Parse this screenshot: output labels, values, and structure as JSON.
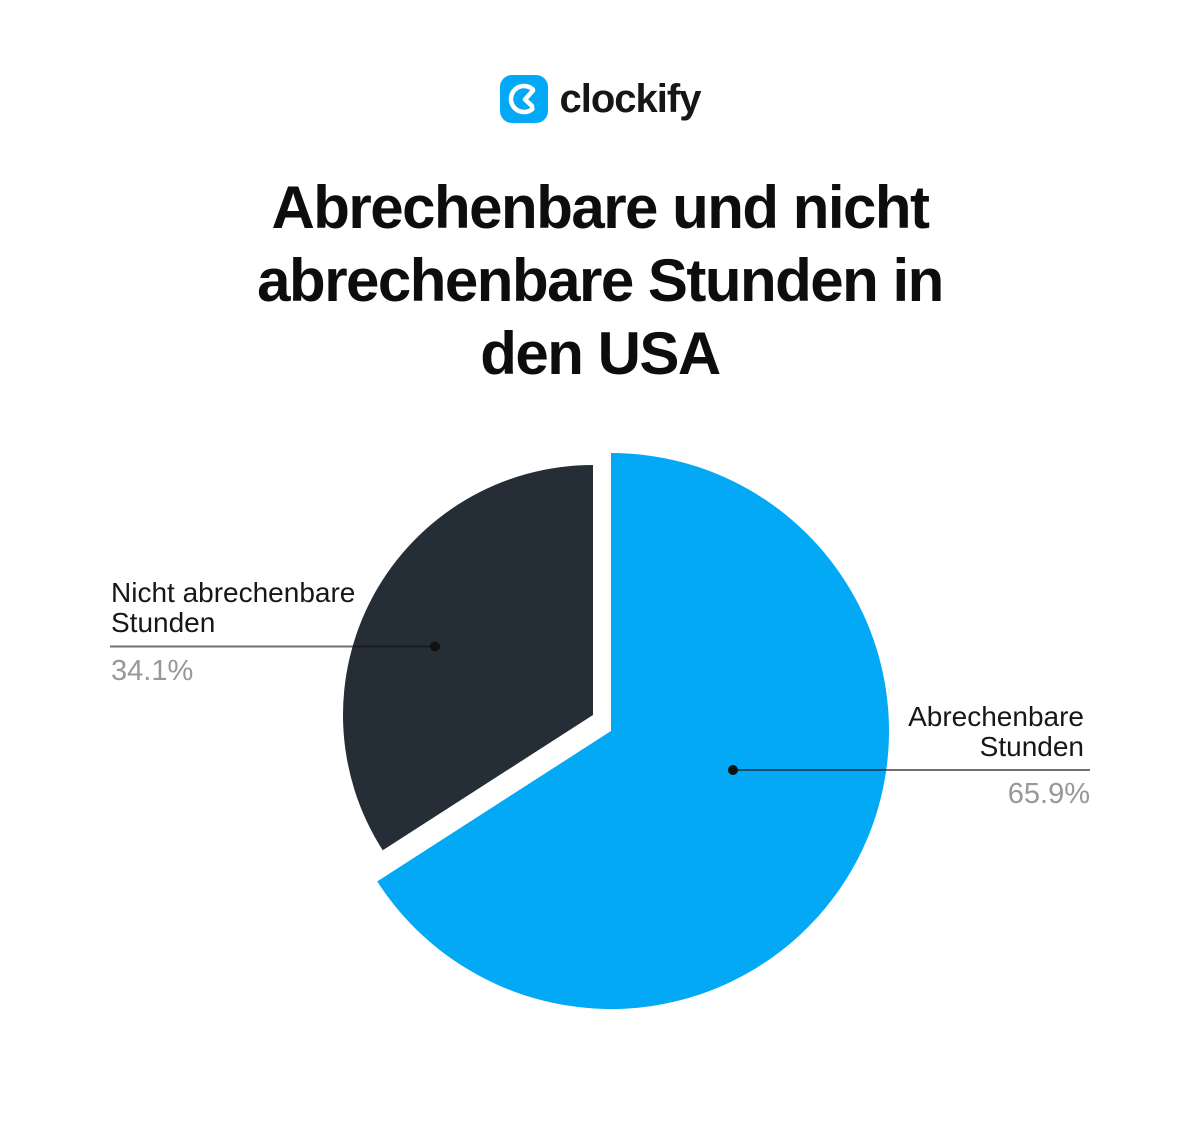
{
  "page": {
    "background": "#ffffff"
  },
  "header": {
    "brand": {
      "name": "clockify",
      "icon": "clockify-clock-icon",
      "icon_bg": "#03a9f4",
      "icon_fg": "#ffffff",
      "wordmark_color": "#141618"
    }
  },
  "chart_data": {
    "type": "pie",
    "title": "Abrechenbare und nicht abrechenbare Stunden in den USA",
    "title_lines": [
      "Abrechenbare und nicht",
      "abrechenbare Stunden in",
      "den USA"
    ],
    "title_color": "#0c0d0f",
    "categories": [
      "Abrechenbare Stunden",
      "Nicht abrechenbare Stunden"
    ],
    "values": [
      65.9,
      34.1
    ],
    "slices": [
      {
        "label": "Abrechenbare Stunden",
        "label_lines": [
          "Abrechenbare",
          "Stunden"
        ],
        "value_pct": 65.9,
        "value_label": "65.9%",
        "color": "#03a9f4",
        "exploded": false,
        "label_side": "right"
      },
      {
        "label": "Nicht abrechenbare Stunden",
        "label_lines": [
          "Nicht abrechenbare",
          "Stunden"
        ],
        "value_pct": 34.1,
        "value_label": "34.1%",
        "color": "#252e37",
        "exploded": true,
        "label_side": "left"
      }
    ],
    "start_angle_deg": 0,
    "direction": "clockwise",
    "legend": "none",
    "grid": false,
    "label_color": "#15171a",
    "percent_color": "#98989c",
    "leader_line_color": "rgba(17,17,17,0.6)",
    "leader_dot_color": "#111111"
  }
}
